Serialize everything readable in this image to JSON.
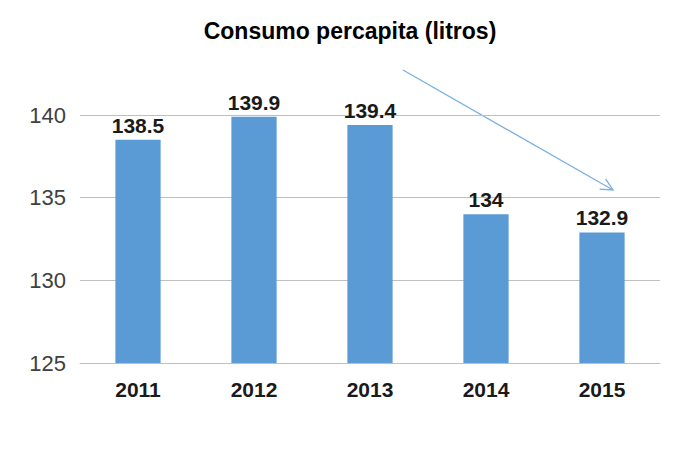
{
  "chart_data": {
    "type": "bar",
    "title": "Consumo percapita (litros)",
    "categories": [
      "2011",
      "2012",
      "2013",
      "2014",
      "2015"
    ],
    "values": [
      138.5,
      139.9,
      139.4,
      134,
      132.9
    ],
    "color": "#5b9bd5",
    "ylim": [
      125,
      140
    ],
    "yticks": [
      125,
      130,
      135,
      140
    ],
    "grid": true,
    "data_labels": true
  }
}
